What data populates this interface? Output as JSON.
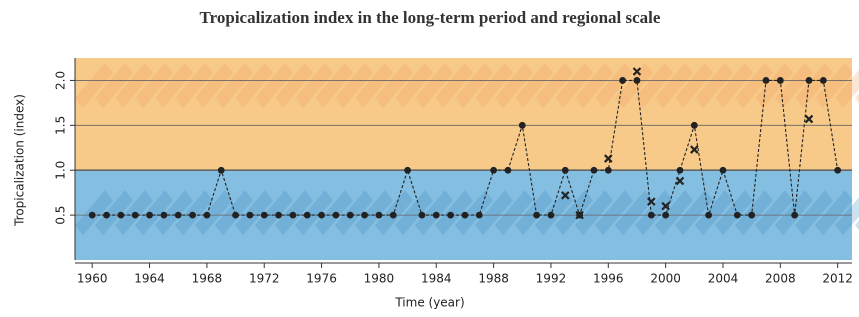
{
  "chart_data": {
    "type": "line",
    "title": "Tropicalization index in the long-term period and regional scale",
    "x_label": "Time (year)",
    "y_label": "Tropicalization (index)",
    "xlim": [
      1958.8,
      2013
    ],
    "ylim": [
      0,
      2.25
    ],
    "xticks": [
      1960,
      1964,
      1968,
      1972,
      1976,
      1980,
      1984,
      1988,
      1992,
      1996,
      2000,
      2004,
      2008,
      2012
    ],
    "yticks": [
      0.5,
      {
        "value": 1.0,
        "label": "1.0"
      },
      1.5,
      {
        "value": 2.0,
        "label": "2.0"
      }
    ],
    "grid": true,
    "upper_color": "#f6c176",
    "lower_color": "#6fb3dc",
    "series": [
      {
        "marker": "circle",
        "color": "#222",
        "dashed": true,
        "x": [
          1960,
          1961,
          1962,
          1963,
          1964,
          1965,
          1966,
          1967,
          1968,
          1969,
          1970,
          1971,
          1972,
          1973,
          1974,
          1975,
          1976,
          1977,
          1978,
          1979,
          1980,
          1981,
          1982,
          1983,
          1984,
          1985,
          1986,
          1987,
          1988,
          1989,
          1990,
          1991,
          1992,
          1993,
          1994,
          1995,
          1996,
          1997,
          1998,
          1999,
          2000,
          2001,
          2002,
          2003,
          2004,
          2005,
          2006,
          2007,
          2008,
          2009,
          2010,
          2011,
          2012
        ],
        "values": [
          0.5,
          0.5,
          0.5,
          0.5,
          0.5,
          0.5,
          0.5,
          0.5,
          0.5,
          1,
          0.5,
          0.5,
          0.5,
          0.5,
          0.5,
          0.5,
          0.5,
          0.5,
          0.5,
          0.5,
          0.5,
          0.5,
          1,
          0.5,
          0.5,
          0.5,
          0.5,
          0.5,
          1,
          1,
          1.5,
          0.5,
          0.5,
          1,
          0.5,
          1,
          1,
          2,
          2,
          0.5,
          0.5,
          1,
          1.5,
          0.5,
          1,
          0.5,
          0.5,
          2,
          2,
          0.5,
          2,
          2,
          1
        ]
      },
      {
        "marker": "cross",
        "color": "#222",
        "x": [
          1993,
          1994,
          1996,
          1998,
          1999,
          2000,
          2001,
          2002,
          2010
        ],
        "values": [
          0.72,
          0.5,
          1.13,
          2.1,
          0.65,
          0.6,
          0.88,
          1.23,
          1.57
        ]
      }
    ]
  }
}
